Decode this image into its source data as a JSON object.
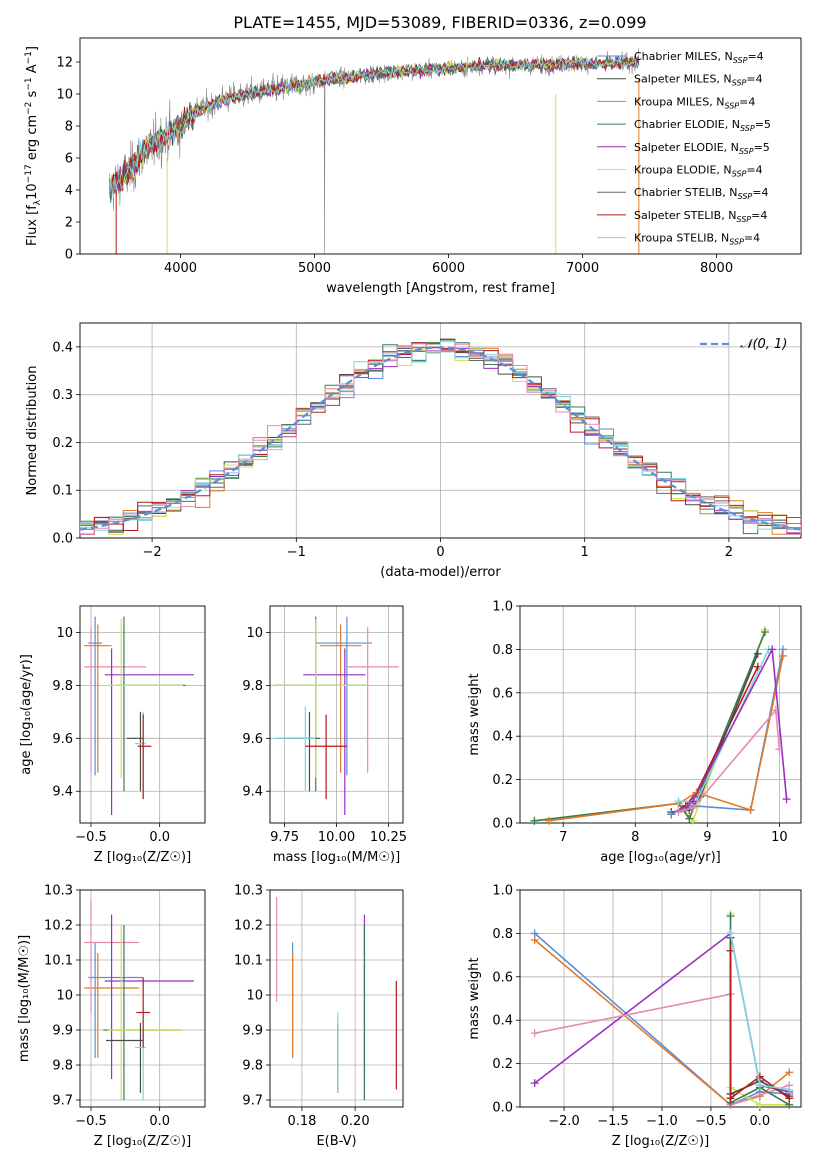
{
  "title": "PLATE=1455, MJD=53089, FIBERID=0336, z=0.099",
  "colors": {
    "chabrier_miles": "#5b8fd6",
    "salpeter_miles": "#4a4a4a",
    "kroupa_miles": "#e07b2a",
    "chabrier_elodie": "#3d7a55",
    "salpeter_elodie": "#9b2ec0",
    "kroupa_elodie": "#cfe34a",
    "chabrier_stelib": "#666666",
    "salpeter_stelib": "#b51a1a",
    "kroupa_stelib": "#7fd6d9",
    "pink": "#e48ab4",
    "data": "#808080"
  },
  "chart_data": [
    {
      "id": "spectrum",
      "type": "line",
      "xlabel": "wavelength [Angstrom, rest frame]",
      "ylabel_parts": [
        "Flux [f",
        "λ",
        "10",
        "−17",
        " erg cm",
        "−2",
        " s",
        "−1",
        " A",
        "−1",
        "]"
      ],
      "xlim": [
        3250,
        8630
      ],
      "ylim": [
        0,
        13.5
      ],
      "xticks": [
        4000,
        5000,
        6000,
        7000,
        8000
      ],
      "yticks": [
        0,
        2,
        4,
        6,
        8,
        10,
        12
      ],
      "grid": false,
      "legend": "top-right",
      "series": [
        {
          "name": "Chabrier MILES, N",
          "sub": "SSP",
          "tail": "=4",
          "color": "#5b8fd6"
        },
        {
          "name": "Salpeter MILES, N",
          "sub": "SSP",
          "tail": "=4",
          "color": "#4a4a4a"
        },
        {
          "name": "Kroupa MILES, N",
          "sub": "SSP",
          "tail": "=4",
          "color": "#e07b2a"
        },
        {
          "name": "Chabrier ELODIE, N",
          "sub": "SSP",
          "tail": "=5",
          "color": "#3d7a55"
        },
        {
          "name": "Salpeter ELODIE, N",
          "sub": "SSP",
          "tail": "=5",
          "color": "#9b2ec0"
        },
        {
          "name": "Kroupa ELODIE, N",
          "sub": "SSP",
          "tail": "=4",
          "color": "#cfe34a"
        },
        {
          "name": "Chabrier STELIB, N",
          "sub": "SSP",
          "tail": "=4",
          "color": "#666666"
        },
        {
          "name": "Salpeter STELIB, N",
          "sub": "SSP",
          "tail": "=4",
          "color": "#b51a1a"
        },
        {
          "name": "Kroupa STELIB, N",
          "sub": "SSP",
          "tail": "=4",
          "color": "#7fd6d9"
        }
      ],
      "continuum": {
        "x": [
          3470,
          3550,
          3650,
          3750,
          3900,
          4000,
          4100,
          4300,
          4500,
          4700,
          4900,
          5100,
          5300,
          5600,
          6000,
          6300,
          6600,
          6900,
          7200,
          7420
        ],
        "y": [
          4.0,
          4.6,
          5.4,
          6.6,
          7.4,
          8.0,
          8.8,
          9.6,
          10.0,
          10.3,
          10.6,
          10.9,
          11.1,
          11.4,
          11.6,
          11.8,
          11.8,
          11.9,
          11.9,
          12.0
        ]
      }
    },
    {
      "id": "residuals",
      "type": "line",
      "xlabel": "(data-model)/error",
      "ylabel": "Normed distribution",
      "xlim": [
        -2.5,
        2.5
      ],
      "ylim": [
        0,
        0.45
      ],
      "xticks": [
        -2,
        -1,
        0,
        1,
        2
      ],
      "xtick_labels": [
        "−2",
        "−1",
        "0",
        "1",
        "2"
      ],
      "yticks": [
        0.0,
        0.1,
        0.2,
        0.3,
        0.4
      ],
      "ytick_labels": [
        "0.0",
        "0.1",
        "0.2",
        "0.3",
        "0.4"
      ],
      "grid": true,
      "legend": "top-right",
      "gaussian_label": "𝒩(0, 1)",
      "gaussian_mean": 0,
      "gaussian_sigma": 1,
      "bin_width": 0.1
    },
    {
      "id": "age-Z",
      "type": "scatter",
      "xlabel": "Z [log₁₀(Z/Z☉)]",
      "ylabel": "age  [log₁₀(age/yr)]",
      "xlim": [
        -0.58,
        0.33
      ],
      "ylim": [
        9.28,
        10.1
      ],
      "xticks": [
        -0.5,
        0.0
      ],
      "xtick_labels": [
        "−0.5",
        "0.0"
      ],
      "yticks": [
        9.4,
        9.6,
        9.8,
        10.0
      ],
      "grid": true,
      "crosses": [
        {
          "x": -0.47,
          "xe": [
            0.05,
            0.05
          ],
          "y": 9.96,
          "ye": [
            0.5,
            0.1
          ],
          "color": "#5b8fd6"
        },
        {
          "x": -0.45,
          "xe": [
            0.1,
            0.1
          ],
          "y": 9.95,
          "ye": [
            0.48,
            0.08
          ],
          "color": "#e07b2a"
        },
        {
          "x": -0.5,
          "xe": [
            0.05,
            0.4
          ],
          "y": 9.87,
          "ye": [
            0.4,
            0.15
          ],
          "color": "#e48ab4"
        },
        {
          "x": -0.35,
          "xe": [
            0.05,
            0.6
          ],
          "y": 9.84,
          "ye": [
            0.53,
            0.1
          ],
          "color": "#9b2ec0"
        },
        {
          "x": -0.26,
          "xe": [
            0.05,
            0.45
          ],
          "y": 9.8,
          "ye": [
            0.4,
            0.26
          ],
          "color": "#3d7a55"
        },
        {
          "x": -0.28,
          "xe": [
            0.1,
            0.45
          ],
          "y": 9.8,
          "ye": [
            0.35,
            0.25
          ],
          "color": "#cfe34a"
        },
        {
          "x": -0.14,
          "xe": [
            0.1,
            0.02
          ],
          "y": 9.6,
          "ye": [
            0.2,
            0.1
          ],
          "color": "#4a4a4a"
        },
        {
          "x": -0.12,
          "xe": [
            0.06,
            0.02
          ],
          "y": 9.58,
          "ye": [
            0.2,
            0.12
          ],
          "color": "#7fd6d9"
        },
        {
          "x": -0.12,
          "xe": [
            0.04,
            0.06
          ],
          "y": 9.57,
          "ye": [
            0.2,
            0.12
          ],
          "color": "#b51a1a"
        }
      ]
    },
    {
      "id": "age-mass",
      "type": "scatter",
      "xlabel": "mass [log₁₀(M/M☉)]",
      "ylabel": "",
      "xlim": [
        9.68,
        10.32
      ],
      "ylim": [
        9.28,
        10.1
      ],
      "xticks": [
        9.75,
        10.0,
        10.25
      ],
      "xtick_labels": [
        "9.75",
        "10.00",
        "10.25"
      ],
      "yticks": [
        9.4,
        9.6,
        9.8,
        10.0
      ],
      "grid": true,
      "crosses": [
        {
          "x": 10.05,
          "xe": [
            0.15,
            0.12
          ],
          "y": 9.96,
          "ye": [
            0.5,
            0.1
          ],
          "color": "#5b8fd6"
        },
        {
          "x": 10.02,
          "xe": [
            0.1,
            0.1
          ],
          "y": 9.95,
          "ye": [
            0.48,
            0.08
          ],
          "color": "#e07b2a"
        },
        {
          "x": 10.15,
          "xe": [
            0.1,
            0.15
          ],
          "y": 9.87,
          "ye": [
            0.4,
            0.15
          ],
          "color": "#e48ab4"
        },
        {
          "x": 10.04,
          "xe": [
            0.2,
            0.1
          ],
          "y": 9.84,
          "ye": [
            0.53,
            0.1
          ],
          "color": "#9b2ec0"
        },
        {
          "x": 9.9,
          "xe": [
            0.2,
            0.25
          ],
          "y": 9.8,
          "ye": [
            0.4,
            0.26
          ],
          "color": "#3d7a55"
        },
        {
          "x": 9.9,
          "xe": [
            0.2,
            0.25
          ],
          "y": 9.8,
          "ye": [
            0.35,
            0.25
          ],
          "color": "#cfe34a"
        },
        {
          "x": 9.87,
          "xe": [
            0.15,
            0.05
          ],
          "y": 9.6,
          "ye": [
            0.2,
            0.1
          ],
          "color": "#4a4a4a"
        },
        {
          "x": 9.85,
          "xe": [
            0.15,
            0.05
          ],
          "y": 9.6,
          "ye": [
            0.2,
            0.12
          ],
          "color": "#7fd6d9"
        },
        {
          "x": 9.95,
          "xe": [
            0.1,
            0.1
          ],
          "y": 9.57,
          "ye": [
            0.2,
            0.12
          ],
          "color": "#b51a1a"
        }
      ]
    },
    {
      "id": "weight-age",
      "type": "line",
      "xlabel": "age  [log₁₀(age/yr)]",
      "ylabel": "mass weight",
      "xlim": [
        6.4,
        10.3
      ],
      "ylim": [
        0,
        1
      ],
      "xticks": [
        7,
        8,
        9,
        10
      ],
      "yticks": [
        0.0,
        0.2,
        0.4,
        0.6,
        0.8,
        1.0
      ],
      "ytick_labels": [
        "0.0",
        "0.2",
        "0.4",
        "0.6",
        "0.8",
        "1.0"
      ],
      "grid": true,
      "series": [
        {
          "color": "#cfe34a",
          "x": [
            6.6,
            8.6,
            8.8,
            9.8
          ],
          "y": [
            0.01,
            0.09,
            0.01,
            0.89
          ]
        },
        {
          "color": "#3d7a55",
          "x": [
            6.6,
            8.6,
            8.75,
            9.8
          ],
          "y": [
            0.01,
            0.09,
            0.02,
            0.88
          ]
        },
        {
          "color": "#b51a1a",
          "x": [
            8.5,
            8.7,
            8.85,
            9.7
          ],
          "y": [
            0.04,
            0.08,
            0.14,
            0.72
          ]
        },
        {
          "color": "#4a4a4a",
          "x": [
            8.5,
            8.75,
            8.9,
            9.7
          ],
          "y": [
            0.05,
            0.06,
            0.12,
            0.78
          ]
        },
        {
          "color": "#5b8fd6",
          "x": [
            8.5,
            8.75,
            9.6,
            10.05
          ],
          "y": [
            0.04,
            0.08,
            0.06,
            0.8
          ]
        },
        {
          "color": "#e07b2a",
          "x": [
            6.8,
            8.6,
            8.85,
            9.6,
            10.05
          ],
          "y": [
            0.01,
            0.09,
            0.14,
            0.06,
            0.77
          ]
        },
        {
          "color": "#7fd6d9",
          "x": [
            8.6,
            8.85,
            9.85
          ],
          "y": [
            0.1,
            0.1,
            0.8
          ]
        },
        {
          "color": "#9b2ec0",
          "x": [
            8.7,
            8.8,
            9.9,
            10.1
          ],
          "y": [
            0.07,
            0.1,
            0.8,
            0.11
          ]
        },
        {
          "color": "#e48ab4",
          "x": [
            8.6,
            8.8,
            9.95,
            10.0
          ],
          "y": [
            0.05,
            0.07,
            0.52,
            0.34
          ]
        }
      ]
    },
    {
      "id": "mass-Z",
      "type": "scatter",
      "xlabel": "Z [log₁₀(Z/Z☉)]",
      "ylabel": "mass [log₁₀(M/M☉)]",
      "xlim": [
        -0.58,
        0.33
      ],
      "ylim": [
        9.68,
        10.3
      ],
      "xticks": [
        -0.5,
        0.0
      ],
      "xtick_labels": [
        "−0.5",
        "0.0"
      ],
      "yticks": [
        9.7,
        9.8,
        9.9,
        10.0,
        10.1,
        10.2,
        10.3
      ],
      "grid": true,
      "crosses": [
        {
          "x": -0.47,
          "xe": [
            0.05,
            0.35
          ],
          "y": 10.05,
          "ye": [
            0.23,
            0.1
          ],
          "color": "#5b8fd6"
        },
        {
          "x": -0.45,
          "xe": [
            0.1,
            0.3
          ],
          "y": 10.02,
          "ye": [
            0.2,
            0.1
          ],
          "color": "#e07b2a"
        },
        {
          "x": -0.5,
          "xe": [
            0.05,
            0.35
          ],
          "y": 10.15,
          "ye": [
            0.2,
            0.12
          ],
          "color": "#e48ab4"
        },
        {
          "x": -0.35,
          "xe": [
            0.05,
            0.6
          ],
          "y": 10.04,
          "ye": [
            0.28,
            0.19
          ],
          "color": "#9b2ec0"
        },
        {
          "x": -0.26,
          "xe": [
            0.15,
            0.42
          ],
          "y": 9.9,
          "ye": [
            0.2,
            0.3
          ],
          "color": "#3d7a55"
        },
        {
          "x": -0.28,
          "xe": [
            0.1,
            0.45
          ],
          "y": 9.9,
          "ye": [
            0.2,
            0.3
          ],
          "color": "#cfe34a"
        },
        {
          "x": -0.14,
          "xe": [
            0.25,
            0.02
          ],
          "y": 9.87,
          "ye": [
            0.15,
            0.05
          ],
          "color": "#4a4a4a"
        },
        {
          "x": -0.12,
          "xe": [
            0.06,
            0.02
          ],
          "y": 9.85,
          "ye": [
            0.15,
            0.05
          ],
          "color": "#7fd6d9"
        },
        {
          "x": -0.12,
          "xe": [
            0.05,
            0.05
          ],
          "y": 9.95,
          "ye": [
            0.1,
            0.1
          ],
          "color": "#b51a1a"
        }
      ]
    },
    {
      "id": "mass-EBV",
      "type": "scatter",
      "xlabel": "E(B-V)",
      "ylabel": "",
      "xlim": [
        0.168,
        0.218
      ],
      "ylim": [
        9.68,
        10.3
      ],
      "xticks": [
        0.18,
        0.2
      ],
      "xtick_labels": [
        "0.18",
        "0.20"
      ],
      "yticks": [
        9.7,
        9.8,
        9.9,
        10.0,
        10.1,
        10.2,
        10.3
      ],
      "grid": true,
      "crosses": [
        {
          "x": 0.1705,
          "xe": [
            0,
            0
          ],
          "y": 10.15,
          "ye": [
            0.17,
            0.13
          ],
          "color": "#e48ab4"
        },
        {
          "x": 0.1765,
          "xe": [
            0,
            0
          ],
          "y": 10.05,
          "ye": [
            0.23,
            0.1
          ],
          "color": "#5b8fd6"
        },
        {
          "x": 0.1765,
          "xe": [
            0,
            0
          ],
          "y": 10.02,
          "ye": [
            0.2,
            0.1
          ],
          "color": "#e07b2a"
        },
        {
          "x": 0.1935,
          "xe": [
            0,
            0
          ],
          "y": 9.87,
          "ye": [
            0.15,
            0.05
          ],
          "color": "#4a4a4a"
        },
        {
          "x": 0.1935,
          "xe": [
            0,
            0
          ],
          "y": 9.85,
          "ye": [
            0.13,
            0.1
          ],
          "color": "#7fd6d9"
        },
        {
          "x": 0.2035,
          "xe": [
            0,
            0
          ],
          "y": 10.04,
          "ye": [
            0.28,
            0.19
          ],
          "color": "#9b2ec0"
        },
        {
          "x": 0.2035,
          "xe": [
            0,
            0
          ],
          "y": 9.9,
          "ye": [
            0.2,
            0.3
          ],
          "color": "#cfe34a"
        },
        {
          "x": 0.2035,
          "xe": [
            0,
            0
          ],
          "y": 9.9,
          "ye": [
            0.2,
            0.3
          ],
          "color": "#3d7a55"
        },
        {
          "x": 0.2155,
          "xe": [
            0,
            0
          ],
          "y": 9.9,
          "ye": [
            0.17,
            0.14
          ],
          "color": "#b51a1a"
        }
      ]
    },
    {
      "id": "weight-Z",
      "type": "line",
      "xlabel": "Z [log₁₀(Z/Z☉)]",
      "ylabel": "mass weight",
      "xlim": [
        -2.45,
        0.42
      ],
      "ylim": [
        0,
        1
      ],
      "xticks": [
        -2.0,
        -1.5,
        -1.0,
        -0.5,
        0.0
      ],
      "xtick_labels": [
        "−2.0",
        "−1.5",
        "−1.0",
        "−0.5",
        "0.0"
      ],
      "yticks": [
        0.0,
        0.2,
        0.4,
        0.6,
        0.8,
        1.0
      ],
      "ytick_labels": [
        "0.0",
        "0.2",
        "0.4",
        "0.6",
        "0.8",
        "1.0"
      ],
      "grid": true,
      "series": [
        {
          "color": "#5b8fd6",
          "x": [
            -2.3,
            -0.3,
            0.0,
            0.3
          ],
          "y": [
            0.8,
            0.01,
            0.07,
            0.06
          ]
        },
        {
          "color": "#e07b2a",
          "x": [
            -2.3,
            -0.3,
            0.0,
            0.3
          ],
          "y": [
            0.77,
            0.01,
            0.05,
            0.16
          ]
        },
        {
          "color": "#9b2ec0",
          "x": [
            -2.3,
            -0.3,
            0.0,
            0.3
          ],
          "y": [
            0.11,
            0.8,
            0.1,
            0.07
          ]
        },
        {
          "color": "#e48ab4",
          "x": [
            -2.3,
            -0.3,
            -0.3,
            0.3
          ],
          "y": [
            0.34,
            0.52,
            0.01,
            0.1
          ]
        },
        {
          "color": "#cfe34a",
          "x": [
            -0.3,
            -0.3,
            0.0,
            0.3
          ],
          "y": [
            0.89,
            0.09,
            0.01,
            0.01
          ]
        },
        {
          "color": "#3d7a55",
          "x": [
            -0.3,
            -0.3,
            0.0,
            0.3
          ],
          "y": [
            0.88,
            0.02,
            0.09,
            0.01
          ]
        },
        {
          "color": "#4a4a4a",
          "x": [
            -0.3,
            -0.3,
            0.0,
            0.3
          ],
          "y": [
            0.78,
            0.06,
            0.12,
            0.05
          ]
        },
        {
          "color": "#b51a1a",
          "x": [
            -0.3,
            -0.3,
            0.0,
            0.3
          ],
          "y": [
            0.72,
            0.04,
            0.14,
            0.04
          ]
        },
        {
          "color": "#7fd6d9",
          "x": [
            -0.3,
            0.0,
            0.3
          ],
          "y": [
            0.8,
            0.1,
            0.08
          ]
        }
      ]
    }
  ]
}
